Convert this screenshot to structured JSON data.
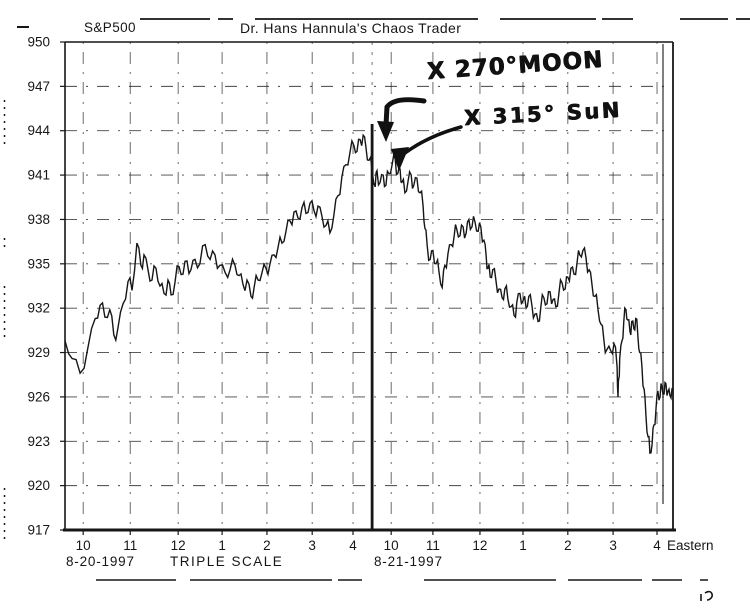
{
  "theme": {
    "ink": "#161616",
    "paper": "#ffffff"
  },
  "chart_data": {
    "type": "line",
    "symbol": "S&P500",
    "title": "Dr. Hans Hannula's Chaos Trader",
    "ylim": [
      917,
      950
    ],
    "y_ticks": [
      950,
      947,
      944,
      941,
      938,
      935,
      932,
      929,
      926,
      923,
      920,
      917
    ],
    "t_unit": "session hours, both trading days concatenated (9:30 open of 8-20-1997 = 0)",
    "t_range": [
      0,
      13.7
    ],
    "grid": "dash-dot crosses at every hour tick and every 3-point price level (scanned, fragmentary)",
    "legend": "none",
    "x_ticks": [
      {
        "label": "10",
        "t": 0.41
      },
      {
        "label": "11",
        "t": 1.47
      },
      {
        "label": "12",
        "t": 2.55
      },
      {
        "label": "1",
        "t": 3.54
      },
      {
        "label": "2",
        "t": 4.55
      },
      {
        "label": "3",
        "t": 5.57
      },
      {
        "label": "4",
        "t": 6.49
      },
      {
        "label": "10",
        "t": 7.35
      },
      {
        "label": "11",
        "t": 8.29
      },
      {
        "label": "12",
        "t": 9.35
      },
      {
        "label": "1",
        "t": 10.32
      },
      {
        "label": "2",
        "t": 11.33
      },
      {
        "label": "3",
        "t": 12.35
      },
      {
        "label": "4",
        "t": 13.34
      }
    ],
    "timezone_label": "Eastern",
    "scale_note": "TRIPLE SCALE",
    "sessions": [
      {
        "date": "8-20-1997",
        "t_open": 0,
        "t_close": 6.92
      },
      {
        "date": "8-21-1997",
        "t_open": 6.92,
        "t_close": 13.7
      }
    ],
    "session_divider_t": 6.92,
    "annotations": [
      {
        "text": "X 270°MOON",
        "t": 6.72,
        "price": 943.7
      },
      {
        "text": "X 315° SuN",
        "t": 7.44,
        "price": 942.1
      }
    ],
    "series": [
      {
        "name": "S&P500",
        "points": [
          [
            0,
            929.8
          ],
          [
            0.16,
            928.6
          ],
          [
            0.34,
            927.6
          ],
          [
            0.52,
            929.4
          ],
          [
            0.68,
            931.3
          ],
          [
            0.79,
            932.2
          ],
          [
            0.9,
            931.4
          ],
          [
            1.01,
            931.9
          ],
          [
            1.1,
            930.2
          ],
          [
            1.19,
            930.6
          ],
          [
            1.31,
            932.3
          ],
          [
            1.42,
            933.8
          ],
          [
            1.51,
            933.2
          ],
          [
            1.62,
            936.4
          ],
          [
            1.71,
            934.9
          ],
          [
            1.78,
            935.6
          ],
          [
            1.87,
            934.6
          ],
          [
            1.96,
            933.9
          ],
          [
            2.05,
            934.7
          ],
          [
            2.14,
            933.5
          ],
          [
            2.23,
            933.0
          ],
          [
            2.32,
            933.9
          ],
          [
            2.39,
            932.9
          ],
          [
            2.48,
            933.8
          ],
          [
            2.57,
            934.8
          ],
          [
            2.66,
            934.3
          ],
          [
            2.75,
            935.2
          ],
          [
            2.84,
            934.6
          ],
          [
            2.93,
            935.3
          ],
          [
            3.04,
            935.0
          ],
          [
            3.16,
            936.3
          ],
          [
            3.27,
            935.3
          ],
          [
            3.38,
            935.6
          ],
          [
            3.49,
            934.9
          ],
          [
            3.61,
            934.4
          ],
          [
            3.72,
            934.6
          ],
          [
            3.83,
            934.9
          ],
          [
            3.92,
            934.2
          ],
          [
            4.01,
            933.6
          ],
          [
            4.1,
            933.9
          ],
          [
            4.19,
            932.8
          ],
          [
            4.26,
            933.4
          ],
          [
            4.35,
            933.9
          ],
          [
            4.44,
            934.4
          ],
          [
            4.53,
            934.7
          ],
          [
            4.62,
            935.0
          ],
          [
            4.71,
            935.6
          ],
          [
            4.8,
            936.1
          ],
          [
            4.89,
            936.4
          ],
          [
            4.98,
            937.2
          ],
          [
            5.07,
            937.9
          ],
          [
            5.16,
            938.5
          ],
          [
            5.25,
            938.1
          ],
          [
            5.34,
            938.8
          ],
          [
            5.43,
            938.4
          ],
          [
            5.52,
            939.1
          ],
          [
            5.61,
            938.6
          ],
          [
            5.7,
            938.9
          ],
          [
            5.79,
            938.2
          ],
          [
            5.88,
            937.6
          ],
          [
            5.97,
            937.1
          ],
          [
            6.06,
            938.3
          ],
          [
            6.15,
            939.6
          ],
          [
            6.24,
            940.9
          ],
          [
            6.33,
            941.7
          ],
          [
            6.42,
            942.5
          ],
          [
            6.51,
            943.0
          ],
          [
            6.58,
            942.6
          ],
          [
            6.65,
            943.4
          ],
          [
            6.72,
            943.7
          ],
          [
            6.78,
            942.9
          ],
          [
            6.85,
            942.0
          ],
          [
            6.92,
            941.3
          ],
          [
            6.99,
            940.2
          ],
          [
            7.03,
            941.3
          ],
          [
            7.1,
            940.5
          ],
          [
            7.17,
            941.0
          ],
          [
            7.23,
            940.3
          ],
          [
            7.3,
            941.1
          ],
          [
            7.37,
            941.7
          ],
          [
            7.44,
            942.1
          ],
          [
            7.5,
            941.1
          ],
          [
            7.55,
            941.4
          ],
          [
            7.59,
            940.5
          ],
          [
            7.66,
            939.8
          ],
          [
            7.73,
            940.6
          ],
          [
            7.8,
            941.0
          ],
          [
            7.86,
            940.3
          ],
          [
            7.93,
            940.8
          ],
          [
            8.0,
            939.8
          ],
          [
            8.07,
            938.9
          ],
          [
            8.11,
            937.4
          ],
          [
            8.16,
            936.3
          ],
          [
            8.23,
            935.3
          ],
          [
            8.29,
            935.9
          ],
          [
            8.36,
            935.0
          ],
          [
            8.43,
            934.4
          ],
          [
            8.5,
            933.4
          ],
          [
            8.56,
            934.9
          ],
          [
            8.63,
            935.7
          ],
          [
            8.7,
            936.3
          ],
          [
            8.77,
            936.9
          ],
          [
            8.83,
            937.3
          ],
          [
            8.9,
            936.9
          ],
          [
            8.97,
            937.5
          ],
          [
            9.04,
            937.1
          ],
          [
            9.1,
            938.0
          ],
          [
            9.17,
            937.5
          ],
          [
            9.24,
            937.8
          ],
          [
            9.31,
            937.2
          ],
          [
            9.37,
            937.5
          ],
          [
            9.44,
            936.6
          ],
          [
            9.49,
            935.5
          ],
          [
            9.53,
            934.7
          ],
          [
            9.58,
            934.1
          ],
          [
            9.64,
            934.6
          ],
          [
            9.71,
            933.9
          ],
          [
            9.78,
            933.3
          ],
          [
            9.85,
            932.7
          ],
          [
            9.91,
            933.3
          ],
          [
            9.98,
            932.6
          ],
          [
            10.05,
            932.1
          ],
          [
            10.12,
            931.5
          ],
          [
            10.18,
            932.4
          ],
          [
            10.25,
            933.0
          ],
          [
            10.32,
            932.5
          ],
          [
            10.39,
            932.0
          ],
          [
            10.45,
            932.8
          ],
          [
            10.52,
            932.2
          ],
          [
            10.59,
            931.6
          ],
          [
            10.66,
            931.1
          ],
          [
            10.72,
            932.0
          ],
          [
            10.79,
            932.7
          ],
          [
            10.86,
            932.3
          ],
          [
            10.93,
            933.1
          ],
          [
            11.0,
            932.6
          ],
          [
            11.06,
            932.1
          ],
          [
            11.13,
            933.0
          ],
          [
            11.2,
            933.7
          ],
          [
            11.27,
            933.3
          ],
          [
            11.33,
            934.1
          ],
          [
            11.4,
            934.7
          ],
          [
            11.47,
            934.3
          ],
          [
            11.54,
            935.1
          ],
          [
            11.6,
            935.6
          ],
          [
            11.67,
            935.9
          ],
          [
            11.74,
            935.4
          ],
          [
            11.81,
            934.6
          ],
          [
            11.87,
            933.7
          ],
          [
            11.94,
            932.8
          ],
          [
            12.01,
            931.9
          ],
          [
            12.08,
            930.9
          ],
          [
            12.14,
            929.9
          ],
          [
            12.21,
            929.2
          ],
          [
            12.3,
            929.1
          ],
          [
            12.37,
            929.6
          ],
          [
            12.44,
            928.0
          ],
          [
            12.46,
            926.0
          ],
          [
            12.48,
            927.3
          ],
          [
            12.5,
            928.6
          ],
          [
            12.55,
            929.8
          ],
          [
            12.59,
            931.0
          ],
          [
            12.64,
            931.9
          ],
          [
            12.68,
            931.2
          ],
          [
            12.73,
            930.4
          ],
          [
            12.77,
            931.1
          ],
          [
            12.82,
            930.6
          ],
          [
            12.86,
            931.3
          ],
          [
            12.91,
            930.1
          ],
          [
            12.95,
            929.0
          ],
          [
            13.0,
            928.1
          ],
          [
            13.05,
            926.5
          ],
          [
            13.09,
            924.8
          ],
          [
            13.14,
            923.3
          ],
          [
            13.18,
            922.2
          ],
          [
            13.23,
            922.8
          ],
          [
            13.27,
            924.1
          ],
          [
            13.32,
            925.3
          ],
          [
            13.36,
            926.4
          ],
          [
            13.41,
            926.0
          ],
          [
            13.45,
            926.7
          ],
          [
            13.5,
            926.2
          ],
          [
            13.54,
            926.9
          ],
          [
            13.59,
            926.4
          ],
          [
            13.63,
            926.1
          ],
          [
            13.68,
            926.6
          ]
        ]
      }
    ]
  }
}
